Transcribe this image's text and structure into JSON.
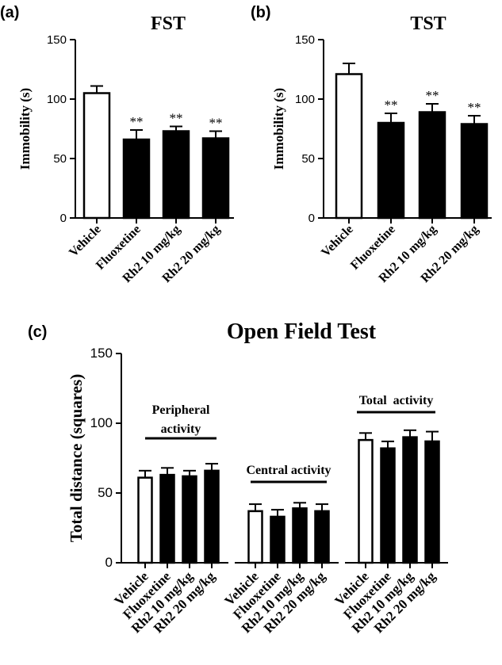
{
  "chart_data": [
    {
      "panel": "(a)",
      "type": "bar",
      "title": "FST",
      "ylabel": "Immobility (s)",
      "ylim": [
        0,
        150
      ],
      "yticks": [
        0,
        50,
        100,
        150
      ],
      "categories": [
        "Vehicle",
        "Fluoxetine",
        "Rh2 10 mg/kg",
        "Rh2 20 mg/kg"
      ],
      "values": [
        105,
        66,
        73,
        67
      ],
      "errors": [
        6,
        8,
        4,
        6
      ],
      "significance": [
        "",
        "**",
        "**",
        "**"
      ],
      "fills": [
        "#ffffff",
        "#000000",
        "#000000",
        "#000000"
      ]
    },
    {
      "panel": "(b)",
      "type": "bar",
      "title": "TST",
      "ylabel": "Immobility (s)",
      "ylim": [
        0,
        150
      ],
      "yticks": [
        0,
        50,
        100,
        150
      ],
      "categories": [
        "Vehicle",
        "Fluoxetine",
        "Rh2 10 mg/kg",
        "Rh2 20 mg/kg"
      ],
      "values": [
        121,
        80,
        89,
        79
      ],
      "errors": [
        9,
        8,
        7,
        7
      ],
      "significance": [
        "",
        "**",
        "**",
        "**"
      ],
      "fills": [
        "#ffffff",
        "#000000",
        "#000000",
        "#000000"
      ]
    },
    {
      "panel": "(c)",
      "type": "bar",
      "title": "Open Field Test",
      "ylabel": "Total distance (squares)",
      "ylim": [
        0,
        150
      ],
      "yticks": [
        0,
        50,
        100,
        150
      ],
      "categories": [
        "Vehicle",
        "Fluoxetine",
        "Rh2 10 mg/kg",
        "Rh2 20 mg/kg"
      ],
      "groups": [
        {
          "label_lines": [
            "Peripheral",
            "activity"
          ],
          "values": [
            61,
            63,
            62,
            66
          ],
          "errors": [
            5,
            5,
            4,
            5
          ]
        },
        {
          "label_lines": [
            "Central activity"
          ],
          "values": [
            37,
            33,
            39,
            37
          ],
          "errors": [
            5,
            5,
            4,
            5
          ]
        },
        {
          "label_lines": [
            "Total  activity"
          ],
          "values": [
            88,
            82,
            90,
            87
          ],
          "errors": [
            5,
            5,
            5,
            7
          ]
        }
      ],
      "fills": [
        "#ffffff",
        "#000000",
        "#000000",
        "#000000"
      ]
    }
  ]
}
